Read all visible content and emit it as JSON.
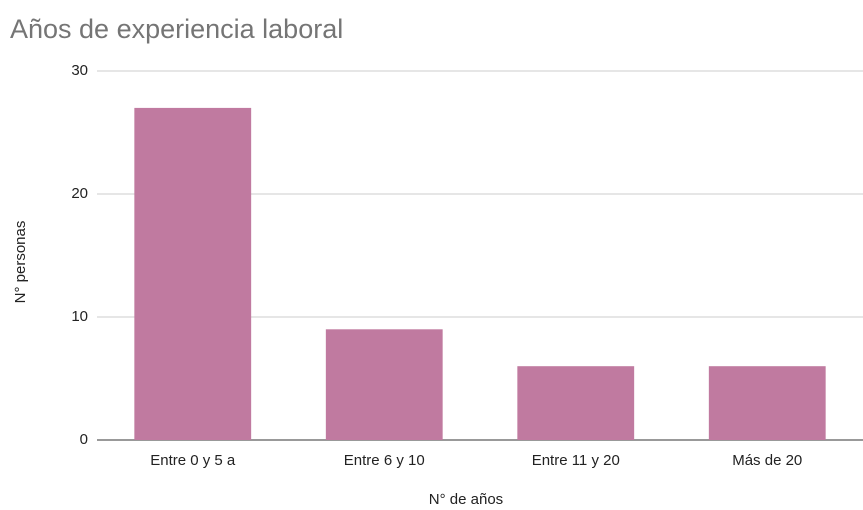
{
  "chart_data": {
    "type": "bar",
    "title": "Años de experiencia laboral",
    "x_label": "N° de años",
    "y_label": "N° personas",
    "categories": [
      "Entre 0 y 5 a",
      "Entre 6 y 10",
      "Entre 11 y 20",
      "Más de 20"
    ],
    "values": [
      27,
      9,
      6,
      6
    ],
    "color": "#c07aa0",
    "ylim": [
      0,
      30
    ],
    "yticks": [
      0,
      10,
      20,
      30
    ],
    "grid": true
  }
}
